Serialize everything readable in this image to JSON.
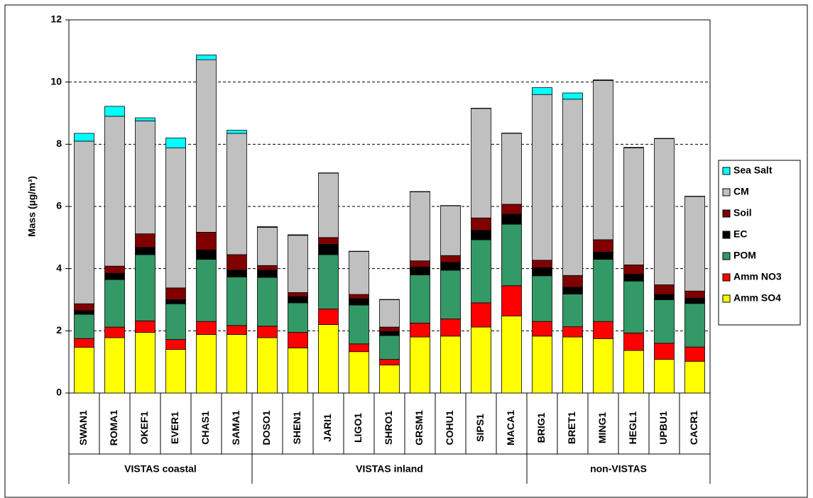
{
  "chart_data": {
    "type": "stacked-bar",
    "ylabel": "Mass (µg/m³)",
    "ylim": [
      0,
      12
    ],
    "yticks": [
      0,
      2,
      4,
      6,
      8,
      10,
      12
    ],
    "grid": true,
    "legend": "right",
    "groups": [
      {
        "name": "VISTAS coastal",
        "categories": [
          "SWAN1",
          "ROMA1",
          "OKEF1",
          "EVER1",
          "CHAS1",
          "SAMA1"
        ]
      },
      {
        "name": "VISTAS inland",
        "categories": [
          "DOSO1",
          "SHEN1",
          "JARI1",
          "LIGO1",
          "SHRO1",
          "GRSM1",
          "COHU1",
          "SIPS1",
          "MACA1"
        ]
      },
      {
        "name": "non-VISTAS",
        "categories": [
          "BRIG1",
          "BRET1",
          "MING1",
          "HEGL1",
          "UPBU1",
          "CACR1"
        ]
      }
    ],
    "series": [
      {
        "name": "Amm SO4",
        "color": "#ffff00",
        "values": [
          1.47,
          1.78,
          1.95,
          1.4,
          1.88,
          1.88,
          1.78,
          1.45,
          2.2,
          1.33,
          0.9,
          1.8,
          1.83,
          2.12,
          2.48,
          1.83,
          1.8,
          1.75,
          1.37,
          1.08,
          1.02
        ]
      },
      {
        "name": "Amm NO3",
        "color": "#ff0000",
        "values": [
          0.28,
          0.34,
          0.37,
          0.32,
          0.42,
          0.29,
          0.37,
          0.5,
          0.5,
          0.25,
          0.18,
          0.45,
          0.55,
          0.78,
          0.97,
          0.47,
          0.33,
          0.55,
          0.56,
          0.52,
          0.46
        ]
      },
      {
        "name": "POM",
        "color": "#339966",
        "values": [
          0.78,
          1.53,
          2.13,
          1.15,
          2.0,
          1.56,
          1.57,
          0.95,
          1.75,
          1.25,
          0.77,
          1.55,
          1.57,
          2.03,
          1.98,
          1.47,
          1.05,
          2.0,
          1.67,
          1.4,
          1.4
        ]
      },
      {
        "name": "EC",
        "color": "#000000",
        "values": [
          0.12,
          0.2,
          0.23,
          0.13,
          0.3,
          0.22,
          0.23,
          0.2,
          0.33,
          0.2,
          0.13,
          0.25,
          0.25,
          0.3,
          0.32,
          0.26,
          0.22,
          0.23,
          0.22,
          0.17,
          0.17
        ]
      },
      {
        "name": "Soil",
        "color": "#800000",
        "values": [
          0.22,
          0.23,
          0.44,
          0.38,
          0.57,
          0.5,
          0.15,
          0.13,
          0.22,
          0.14,
          0.14,
          0.2,
          0.22,
          0.4,
          0.32,
          0.24,
          0.38,
          0.4,
          0.3,
          0.31,
          0.23
        ]
      },
      {
        "name": "CM",
        "color": "#c0c0c0",
        "values": [
          5.23,
          4.82,
          3.63,
          4.5,
          5.55,
          3.9,
          1.23,
          1.84,
          2.07,
          1.38,
          0.88,
          2.22,
          1.6,
          3.52,
          2.28,
          5.33,
          5.67,
          5.12,
          3.76,
          4.7,
          3.04
        ]
      },
      {
        "name": "Sea Salt",
        "color": "#00ffff",
        "values": [
          0.25,
          0.32,
          0.1,
          0.32,
          0.15,
          0.1,
          0.02,
          0.02,
          0.01,
          0.01,
          0.01,
          0.01,
          0.01,
          0.01,
          0.01,
          0.22,
          0.2,
          0.02,
          0.02,
          0.01,
          0.01
        ]
      }
    ]
  }
}
